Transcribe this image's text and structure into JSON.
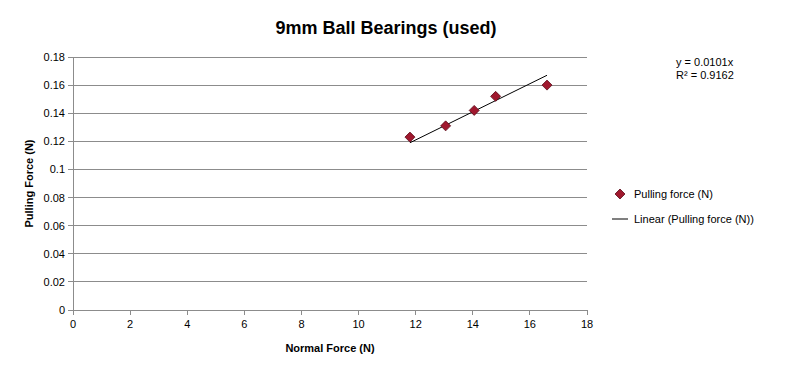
{
  "chart_data": {
    "type": "scatter",
    "title": "9mm Ball Bearings (used)",
    "x_label": "Normal Force (N)",
    "y_label": "Pulling Force (N)",
    "annotations": [
      "y = 0.0101x",
      "R² = 0.9162"
    ],
    "xlim": [
      0,
      18
    ],
    "xticks": [
      0,
      2,
      4,
      6,
      8,
      10,
      12,
      14,
      16,
      18
    ],
    "ylim": [
      0,
      0.18
    ],
    "yticks": [
      0,
      0.02,
      0.04,
      0.06,
      0.08,
      0.1,
      0.12,
      0.14,
      0.16,
      0.18
    ],
    "grid": true,
    "legend": "right",
    "series": [
      {
        "name": "Pulling force (N)",
        "type": "scatter",
        "marker": "diamond",
        "color": "#a0182e",
        "x": [
          11.8,
          13.05,
          14.05,
          14.8,
          16.6
        ],
        "values": [
          0.123,
          0.131,
          0.142,
          0.152,
          0.16
        ]
      },
      {
        "name": "Linear (Pulling force (N))",
        "type": "line",
        "line_style": "solid",
        "color": "#000000",
        "x": [
          11.8,
          16.6
        ],
        "values": [
          0.119,
          0.167
        ]
      }
    ]
  }
}
